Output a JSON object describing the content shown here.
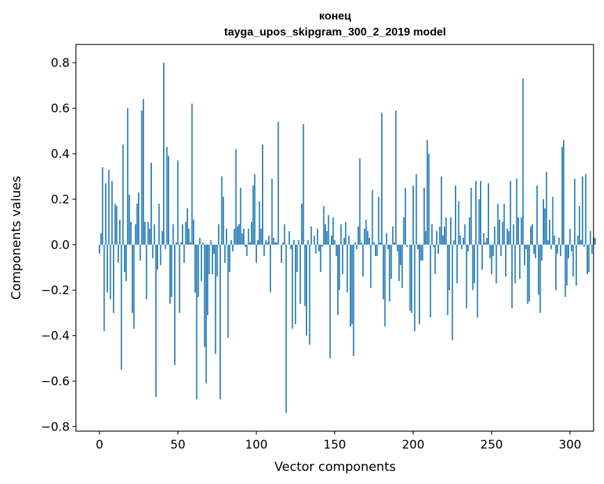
{
  "chart_data": {
    "type": "bar",
    "title": "конец",
    "subtitle": "tayga_upos_skipgram_300_2_2019 model",
    "xlabel": "Vector components",
    "ylabel": "Components values",
    "xlim": [
      -15,
      315
    ],
    "ylim": [
      -0.82,
      0.88
    ],
    "xticks": [
      0,
      50,
      100,
      150,
      200,
      250,
      300
    ],
    "yticks": [
      -0.8,
      -0.6,
      -0.4,
      -0.2,
      0.0,
      0.2,
      0.4,
      0.6,
      0.8
    ],
    "ytick_labels": [
      "−0.8",
      "−0.6",
      "−0.4",
      "−0.2",
      "0.0",
      "0.2",
      "0.4",
      "0.6",
      "0.8"
    ],
    "bar_color": "#1f77b4",
    "grid": false,
    "legend": "none",
    "values": [
      -0.04,
      0.05,
      0.34,
      -0.38,
      0.27,
      -0.21,
      0.33,
      -0.24,
      0.28,
      -0.3,
      0.18,
      0.17,
      -0.08,
      0.11,
      -0.55,
      0.44,
      -0.12,
      -0.16,
      0.6,
      0.22,
      0.1,
      -0.3,
      -0.37,
      0.09,
      0.18,
      0.23,
      -0.07,
      0.59,
      0.64,
      0.1,
      -0.24,
      0.1,
      0.07,
      0.36,
      -0.06,
      0.09,
      -0.67,
      -0.11,
      0.18,
      -0.09,
      0.06,
      0.8,
      -0.02,
      0.43,
      0.39,
      -0.26,
      -0.23,
      0.09,
      -0.53,
      0.01,
      0.37,
      -0.3,
      0.01,
      0.09,
      -0.08,
      0.1,
      0.16,
      0.07,
      0.01,
      0.62,
      0.11,
      -0.21,
      -0.68,
      -0.23,
      0.03,
      -0.16,
      0.01,
      -0.45,
      -0.61,
      -0.31,
      -0.13,
      0.02,
      -0.13,
      -0.04,
      -0.48,
      -0.14,
      0.09,
      -0.68,
      0.3,
      0.21,
      -0.08,
      0.07,
      -0.41,
      -0.12,
      0.02,
      -0.03,
      0.07,
      0.42,
      0.08,
      0.09,
      0.25,
      0.05,
      0.07,
      -0.01,
      -0.05,
      0.07,
      0.01,
      0.1,
      0.26,
      0.31,
      -0.08,
      0.02,
      0.19,
      0.07,
      0.44,
      -0.05,
      0.02,
      0.01,
      0.04,
      -0.21,
      0.29,
      0.03,
      0.01,
      0.01,
      0.54,
      0.0,
      -0.08,
      0.01,
      0.09,
      -0.74,
      0.0,
      0.06,
      -0.02,
      -0.37,
      0.02,
      -0.35,
      -0.12,
      0.02,
      -0.26,
      0.18,
      0.53,
      -0.27,
      -0.4,
      0.02,
      -0.44,
      0.08,
      0.0,
      0.04,
      -0.04,
      0.07,
      -0.03,
      -0.12,
      -0.01,
      0.17,
      0.09,
      0.06,
      0.13,
      -0.5,
      0.04,
      0.12,
      0.02,
      -0.05,
      -0.31,
      -0.2,
      0.09,
      -0.13,
      0.03,
      0.1,
      -0.21,
      0.04,
      -0.36,
      -0.35,
      -0.49,
      0.01,
      -0.02,
      0.08,
      0.38,
      0.01,
      -0.14,
      0.07,
      0.11,
      0.06,
      0.03,
      -0.19,
      0.24,
      0.01,
      -0.05,
      -0.05,
      0.21,
      0.01,
      0.58,
      -0.24,
      -0.36,
      0.05,
      -0.02,
      -0.25,
      -0.15,
      0.08,
      0.01,
      0.59,
      -0.03,
      -0.16,
      -0.09,
      -0.19,
      0.12,
      0.25,
      -0.01,
      0.0,
      -0.29,
      -0.3,
      0.26,
      -0.38,
      0.31,
      -0.02,
      -0.35,
      -0.07,
      -0.07,
      0.25,
      0.06,
      0.46,
      0.4,
      -0.32,
      0.09,
      -0.01,
      -0.13,
      0.06,
      -0.04,
      0.08,
      0.3,
      0.04,
      0.08,
      0.12,
      -0.31,
      -0.2,
      0.12,
      -0.42,
      0.02,
      0.26,
      -0.17,
      0.19,
      0.04,
      -0.02,
      0.03,
      0.09,
      -0.28,
      -0.03,
      0.12,
      0.25,
      -0.2,
      -0.17,
      0.28,
      -0.32,
      0.2,
      0.28,
      -0.11,
      0.05,
      0.01,
      0.03,
      0.27,
      -0.06,
      -0.13,
      -0.05,
      0.08,
      -0.17,
      0.18,
      0.11,
      -0.05,
      0.1,
      0.18,
      -0.14,
      0.07,
      0.06,
      0.28,
      -0.28,
      0.09,
      -0.17,
      0.29,
      0.12,
      -0.15,
      0.12,
      0.73,
      -0.09,
      -0.02,
      -0.26,
      -0.25,
      0.08,
      0.09,
      -0.04,
      -0.06,
      0.26,
      -0.22,
      -0.3,
      -0.07,
      0.2,
      0.16,
      0.32,
      0.02,
      0.11,
      -0.02,
      0.21,
      0.04,
      -0.2,
      -0.04,
      0.03,
      -0.05,
      0.43,
      0.46,
      -0.23,
      -0.18,
      -0.06,
      0.07,
      -0.03,
      -0.14,
      0.29,
      -0.18,
      0.04,
      0.17,
      0.02,
      0.3,
      -0.01,
      0.31,
      -0.13,
      -0.12,
      0.06,
      -0.04,
      0.03,
      0.03
    ]
  }
}
